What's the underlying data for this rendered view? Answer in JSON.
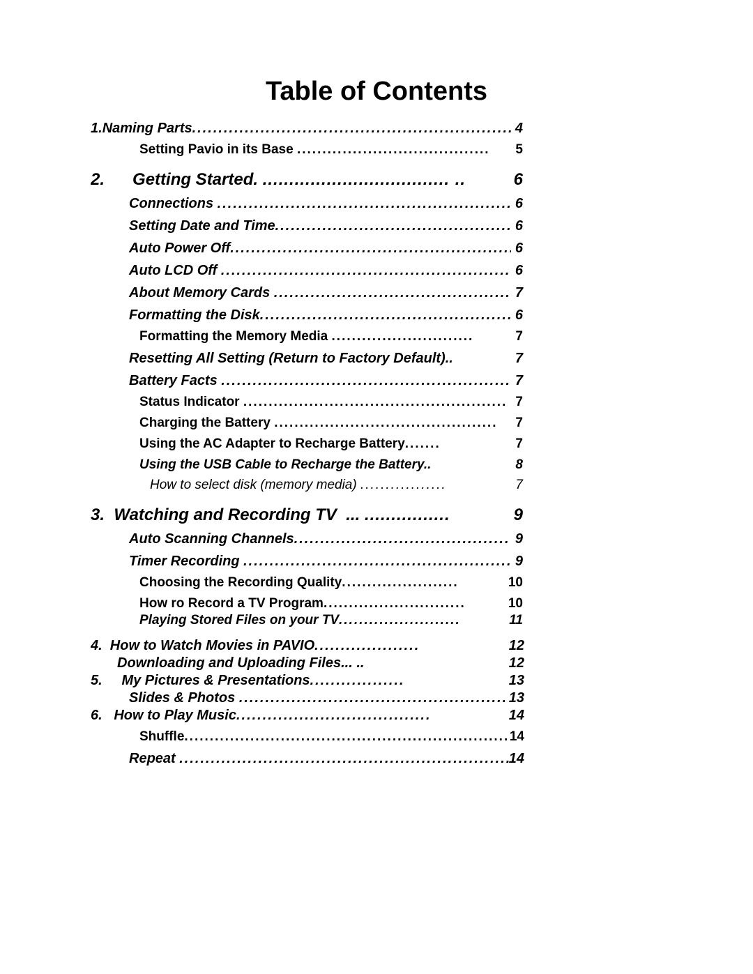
{
  "title": "Table of Contents",
  "entries": [
    {
      "cls": "lvl-chapter-tight no-top",
      "num": "1. ",
      "label": "Naming Parts",
      "dots": "................................................................",
      "page": " 4",
      "rightPad": 200
    },
    {
      "cls": "lvl-sub",
      "num": "",
      "label": "Setting Pavio in its Base ",
      "dots": "......................................",
      "page": " 5",
      "rightPad": 200
    },
    {
      "cls": "lvl-chapter",
      "num": "2.",
      "label": "      Getting Started. ",
      "dots": "................................... ..",
      "page": "6",
      "rightPad": 200
    },
    {
      "cls": "lvl-section",
      "num": "",
      "label": "Connections ",
      "dots": "................................................................",
      "page": " 6",
      "rightPad": 200
    },
    {
      "cls": "lvl-section",
      "num": "",
      "label": "Setting Date and Time",
      "dots": "................................................",
      "page": " 6",
      "rightPad": 200
    },
    {
      "cls": "lvl-section",
      "num": "",
      "label": "Auto Power Off",
      "dots": "............................................................",
      "page": " 6",
      "rightPad": 200
    },
    {
      "cls": "lvl-section",
      "num": "",
      "label": "Auto LCD Off ",
      "dots": "..............................................................",
      "page": " 6",
      "rightPad": 200
    },
    {
      "cls": "lvl-section",
      "num": "",
      "label": "About Memory Cards ",
      "dots": "................................................",
      "page": " 7",
      "rightPad": 200
    },
    {
      "cls": "lvl-section",
      "num": "",
      "label": "Formatting the Disk",
      "dots": "....................................................",
      "page": " 6",
      "rightPad": 200
    },
    {
      "cls": "lvl-sub",
      "num": "",
      "label": "Formatting the Memory Media ",
      "dots": "............................",
      "page": " 7",
      "rightPad": 200
    },
    {
      "cls": "lvl-section",
      "num": "",
      "label": "Resetting All Setting (Return to Factory Default).. ",
      "dots": "",
      "page": "7",
      "rightPad": 200
    },
    {
      "cls": "lvl-section",
      "num": "",
      "label": "Battery Facts ",
      "dots": "..............................................................",
      "page": " 7",
      "rightPad": 200
    },
    {
      "cls": "lvl-sub",
      "num": "",
      "label": "Status Indicator ",
      "dots": "....................................................",
      "page": " 7",
      "rightPad": 200
    },
    {
      "cls": "lvl-sub",
      "num": "",
      "label": "Charging the Battery ",
      "dots": "............................................",
      "page": " 7",
      "rightPad": 200
    },
    {
      "cls": "lvl-sub",
      "num": "",
      "label": "Using the AC Adapter to Recharge Battery",
      "dots": ".......",
      "page": " 7",
      "rightPad": 200
    },
    {
      "cls": "lvl-sub-italic",
      "num": "",
      "label": "Using the USB Cable to Recharge the Battery.. ",
      "dots": "",
      "page": "8",
      "rightPad": 200
    },
    {
      "cls": "lvl-subsub-italic",
      "num": "",
      "label": "How to select disk (memory media) ",
      "dots": ".................",
      "page": "7",
      "rightPad": 200
    },
    {
      "cls": "lvl-chapter",
      "num": "3.",
      "label": "  Watching and Recording TV  ... ",
      "dots": "................",
      "page": " 9",
      "rightPad": 200
    },
    {
      "cls": "lvl-section",
      "num": "",
      "label": "Auto Scanning Channels",
      "dots": ".........................................",
      "page": "9",
      "rightPad": 200
    },
    {
      "cls": "lvl-section",
      "num": "",
      "label": "Timer Recording ",
      "dots": "........................................................",
      "page": " 9",
      "rightPad": 200
    },
    {
      "cls": "lvl-sub",
      "num": "",
      "label": "Choosing the Recording Quality",
      "dots": ".......................",
      "page": " 10",
      "rightPad": 200
    },
    {
      "cls": "lvl-sub",
      "num": "",
      "label": "How ro Record a TV Program",
      "dots": "............................",
      "page": " 10",
      "rightPad": 200
    },
    {
      "cls": "lvl-sub-italic tight",
      "num": "",
      "label": "Playing Stored Files on your TV",
      "dots": "........................",
      "page": "11",
      "rightPad": 200
    },
    {
      "cls": "lvl-chapter-tight",
      "num": "4.",
      "label": "  How to Watch Movies in PAVIO",
      "dots": "....................",
      "page": "12",
      "rightPad": 198,
      "mt": 14
    },
    {
      "cls": "lvl-chapter-tight indent-wide",
      "num": "",
      "label": "Downloading and Uploading Files... .. ",
      "dots": "",
      "page": "12",
      "rightPad": 198
    },
    {
      "cls": "lvl-chapter-tight",
      "num": "5.",
      "label": "     My Pictures & Presentations",
      "dots": "..................",
      "page": "13",
      "rightPad": 198
    },
    {
      "cls": "lvl-section tight",
      "num": "",
      "label": "Slides & Photos ",
      "dots": "........................................................",
      "page": " 13",
      "rightPad": 198
    },
    {
      "cls": "lvl-chapter-tight",
      "num": "6.",
      "label": "   How to Play Music",
      "dots": ".....................................",
      "page": "14",
      "rightPad": 198
    },
    {
      "cls": "lvl-sub",
      "num": "",
      "label": "Shuffle",
      "dots": "..................................................................",
      "page": "14",
      "rightPad": 198
    },
    {
      "cls": "lvl-section",
      "num": "",
      "label": "Repeat ",
      "dots": "................................................................",
      "page": "14",
      "rightPad": 198
    }
  ]
}
